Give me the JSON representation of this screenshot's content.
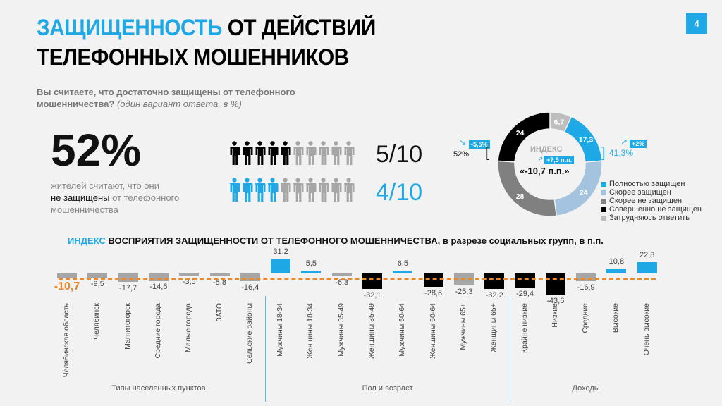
{
  "header": {
    "title_highlight": "ЗАЩИЩЕННОСТЬ",
    "title_rest1": " ОТ ДЕЙСТВИЙ",
    "title_line2": "ТЕЛЕФОННЫХ МОШЕННИКОВ",
    "page_number": "4"
  },
  "question": {
    "text": "Вы считаете, что достаточно защищены от телефонного мошенничества?",
    "note": "(один вариант ответа, в %)"
  },
  "headline": {
    "value": "52%",
    "text1": "жителей считают, что они",
    "text2_bold": "не защищены",
    "text2_rest": " от телефонного",
    "text3": "мошенничества"
  },
  "pictogram": {
    "row1": {
      "filled": 5,
      "total": 10,
      "label": "5/10",
      "color": "#000000"
    },
    "row2": {
      "filled": 4,
      "total": 10,
      "label": "4/10",
      "color": "#1ea9e6"
    }
  },
  "chart_data": [
    {
      "type": "pie",
      "donut": true,
      "slices": [
        {
          "label": "Затрудняюсь ответить",
          "value": 6.7,
          "color": "#bdbdbd"
        },
        {
          "label": "Полностью защищен",
          "value": 17.3,
          "color": "#1ea9e6"
        },
        {
          "label": "Скорее защищен",
          "value": 24,
          "color": "#a3c3df"
        },
        {
          "label": "Скорее не защищен",
          "value": 28,
          "color": "#808080"
        },
        {
          "label": "Совершенно не защищен",
          "value": 24,
          "color": "#000000"
        }
      ],
      "legend_order": [
        1,
        2,
        3,
        4,
        0
      ],
      "center_title": "ИНДЕКС",
      "center_value": "«-10,7 п.п.»",
      "center_change": "+7,5 п.п.",
      "left_total": "52%",
      "left_change": "-5,5%",
      "right_total": "41,3%",
      "right_change": "+2%"
    },
    {
      "type": "bar",
      "title_highlight": "ИНДЕКС",
      "title": " ВОСПРИЯТИЯ ЗАЩИЩЕННОСТИ ОТ ТЕЛЕФОННОГО МОШЕННИЧЕСТВА, в разрезе социальных групп, в п.п.",
      "reference_line": -10.7,
      "categories": [
        "Челябинская область",
        "Челябинск",
        "Магнитогорск",
        "Средние города",
        "Малые города",
        "ЗАТО",
        "Сельские районы",
        "Мужчины 18-34",
        "Женщины 18-34",
        "Мужчины 35-49",
        "Женщины 35-49",
        "Мужчины 50-64",
        "Женщины 50-64",
        "Мужчины 65+",
        "Женщины 65+",
        "Крайне низкие",
        "Низкие",
        "Средние",
        "Высокие",
        "Очень высокие"
      ],
      "values": [
        -10.7,
        -9.5,
        -17.7,
        -14.6,
        -3.5,
        -5.8,
        -16.4,
        31.2,
        5.5,
        -6.3,
        -32.1,
        6.5,
        -28.6,
        -25.3,
        -32.2,
        -29.4,
        -43.6,
        -16.9,
        10.8,
        22.8
      ],
      "labels": [
        "-10,7",
        "-9,5",
        "-17,7",
        "-14,6",
        "-3,5",
        "-5,8",
        "-16,4",
        "31,2",
        "5,5",
        "-6,3",
        "-32,1",
        "6,5",
        "-28,6",
        "-25,3",
        "-32,2",
        "-29,4",
        "-43,6",
        "-16,9",
        "10,8",
        "22,8"
      ],
      "colors": [
        "#a6a6a6",
        "#a6a6a6",
        "#a6a6a6",
        "#a6a6a6",
        "#a6a6a6",
        "#a6a6a6",
        "#a6a6a6",
        "#1ea9e6",
        "#1ea9e6",
        "#a6a6a6",
        "#000000",
        "#1ea9e6",
        "#000000",
        "#a6a6a6",
        "#000000",
        "#000000",
        "#000000",
        "#a6a6a6",
        "#1ea9e6",
        "#1ea9e6"
      ],
      "groups": [
        {
          "label": "Типы населенных пунктов",
          "from": 0,
          "to": 6
        },
        {
          "label": "Пол и возраст",
          "from": 7,
          "to": 14
        },
        {
          "label": "Доходы",
          "from": 15,
          "to": 19
        }
      ]
    }
  ]
}
